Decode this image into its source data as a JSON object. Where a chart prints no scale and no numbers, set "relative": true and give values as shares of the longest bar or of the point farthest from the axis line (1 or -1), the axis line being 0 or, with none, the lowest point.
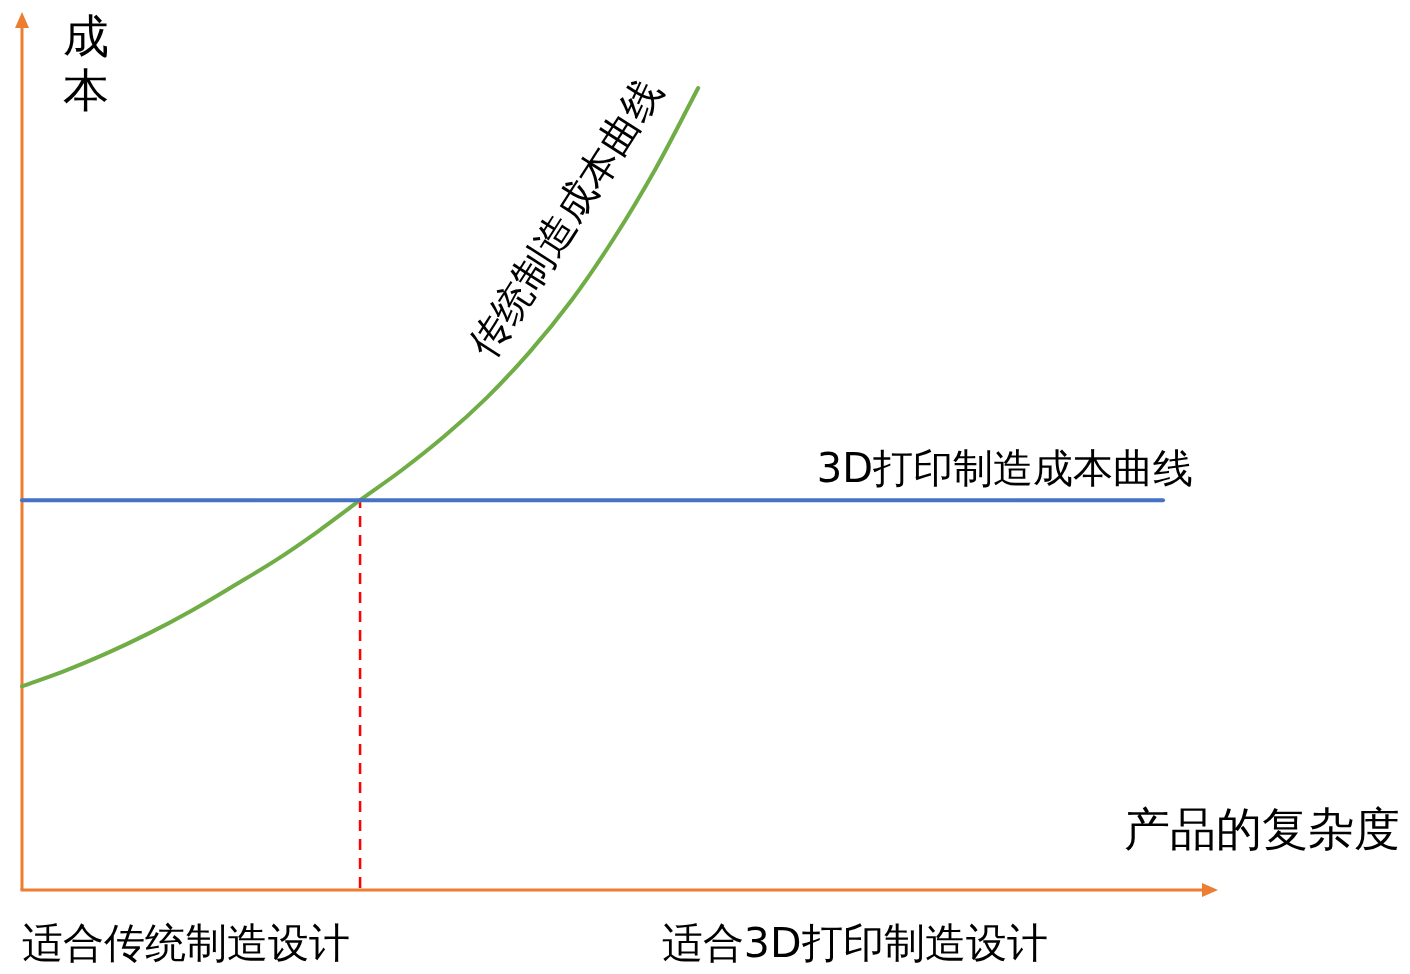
{
  "chart_data": {
    "type": "line",
    "relative": true,
    "ylabel": "成本",
    "xlabel": "产品的复杂度",
    "categories": [
      null,
      null,
      null,
      null,
      null,
      null,
      null,
      null,
      null,
      null,
      null,
      null,
      null,
      null,
      null,
      null,
      null,
      null,
      null,
      null,
      null,
      null,
      null,
      null,
      null,
      null,
      null,
      null
    ],
    "series": [
      {
        "name": "传统制造成本曲线",
        "color": "#70ad47",
        "values": [
          0.254,
          0.273,
          0.295,
          0.32,
          0.348,
          0.379,
          0.411,
          0.447,
          0.486,
          0.524,
          0.566,
          0.614,
          0.67,
          0.735,
          0.812,
          0.9,
          1,
          null,
          null,
          null,
          null,
          null,
          null,
          null,
          null,
          null,
          null,
          null
        ]
      },
      {
        "name": "3D打印制造成本曲线",
        "color": "#4472c4",
        "values": [
          0.486,
          0.486,
          0.486,
          0.486,
          0.486,
          0.486,
          0.486,
          0.486,
          0.486,
          0.486,
          0.486,
          0.486,
          0.486,
          0.486,
          0.486,
          0.486,
          0.486,
          0.486,
          0.486,
          0.486,
          0.486,
          0.486,
          0.486,
          0.486,
          0.486,
          0.486,
          0.486,
          0.486
        ]
      }
    ],
    "annotations": [
      "适合传统制造设计",
      "适合3D打印制造设计"
    ]
  }
}
